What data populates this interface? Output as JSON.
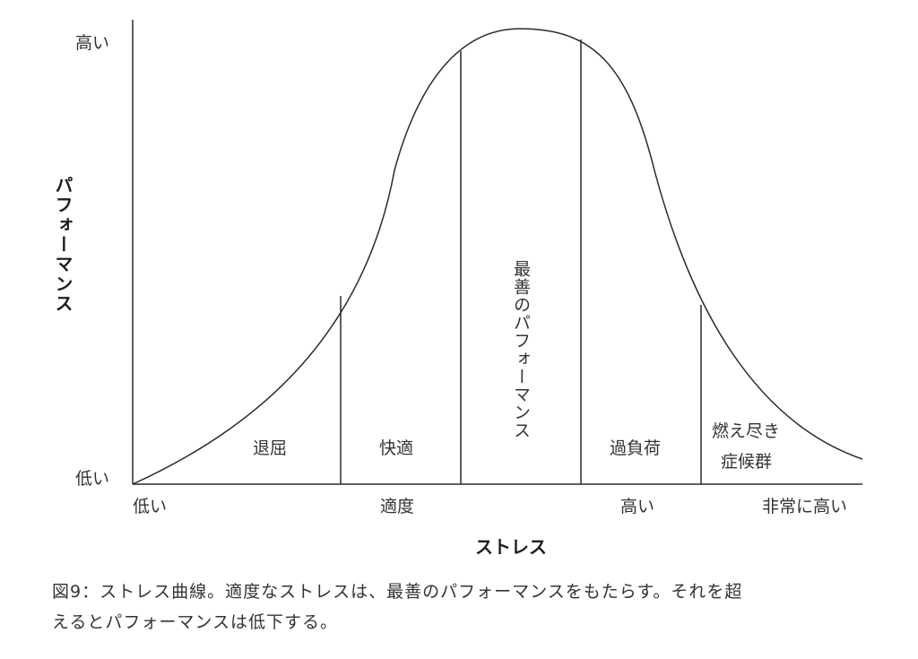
{
  "y_axis": {
    "title": "パフォーマンス",
    "high_label": "高い",
    "low_label": "低い"
  },
  "x_axis": {
    "title": "ストレス",
    "tick_labels": [
      "低い",
      "適度",
      "高い",
      "非常に高い"
    ]
  },
  "zones": [
    {
      "label": "退屈"
    },
    {
      "label": "快適"
    },
    {
      "label": "最善のパフォーマンス"
    },
    {
      "label": "過負荷"
    },
    {
      "label_line1": "燃え尽き",
      "label_line2": "症候群"
    }
  ],
  "caption": {
    "line1": "図9：ストレス曲線。適度なストレスは、最善のパフォーマンスをもたらす。それを超",
    "line2": "えるとパフォーマンスは低下する。"
  },
  "colors": {
    "line": "#2a2a2a",
    "text": "#333333"
  }
}
